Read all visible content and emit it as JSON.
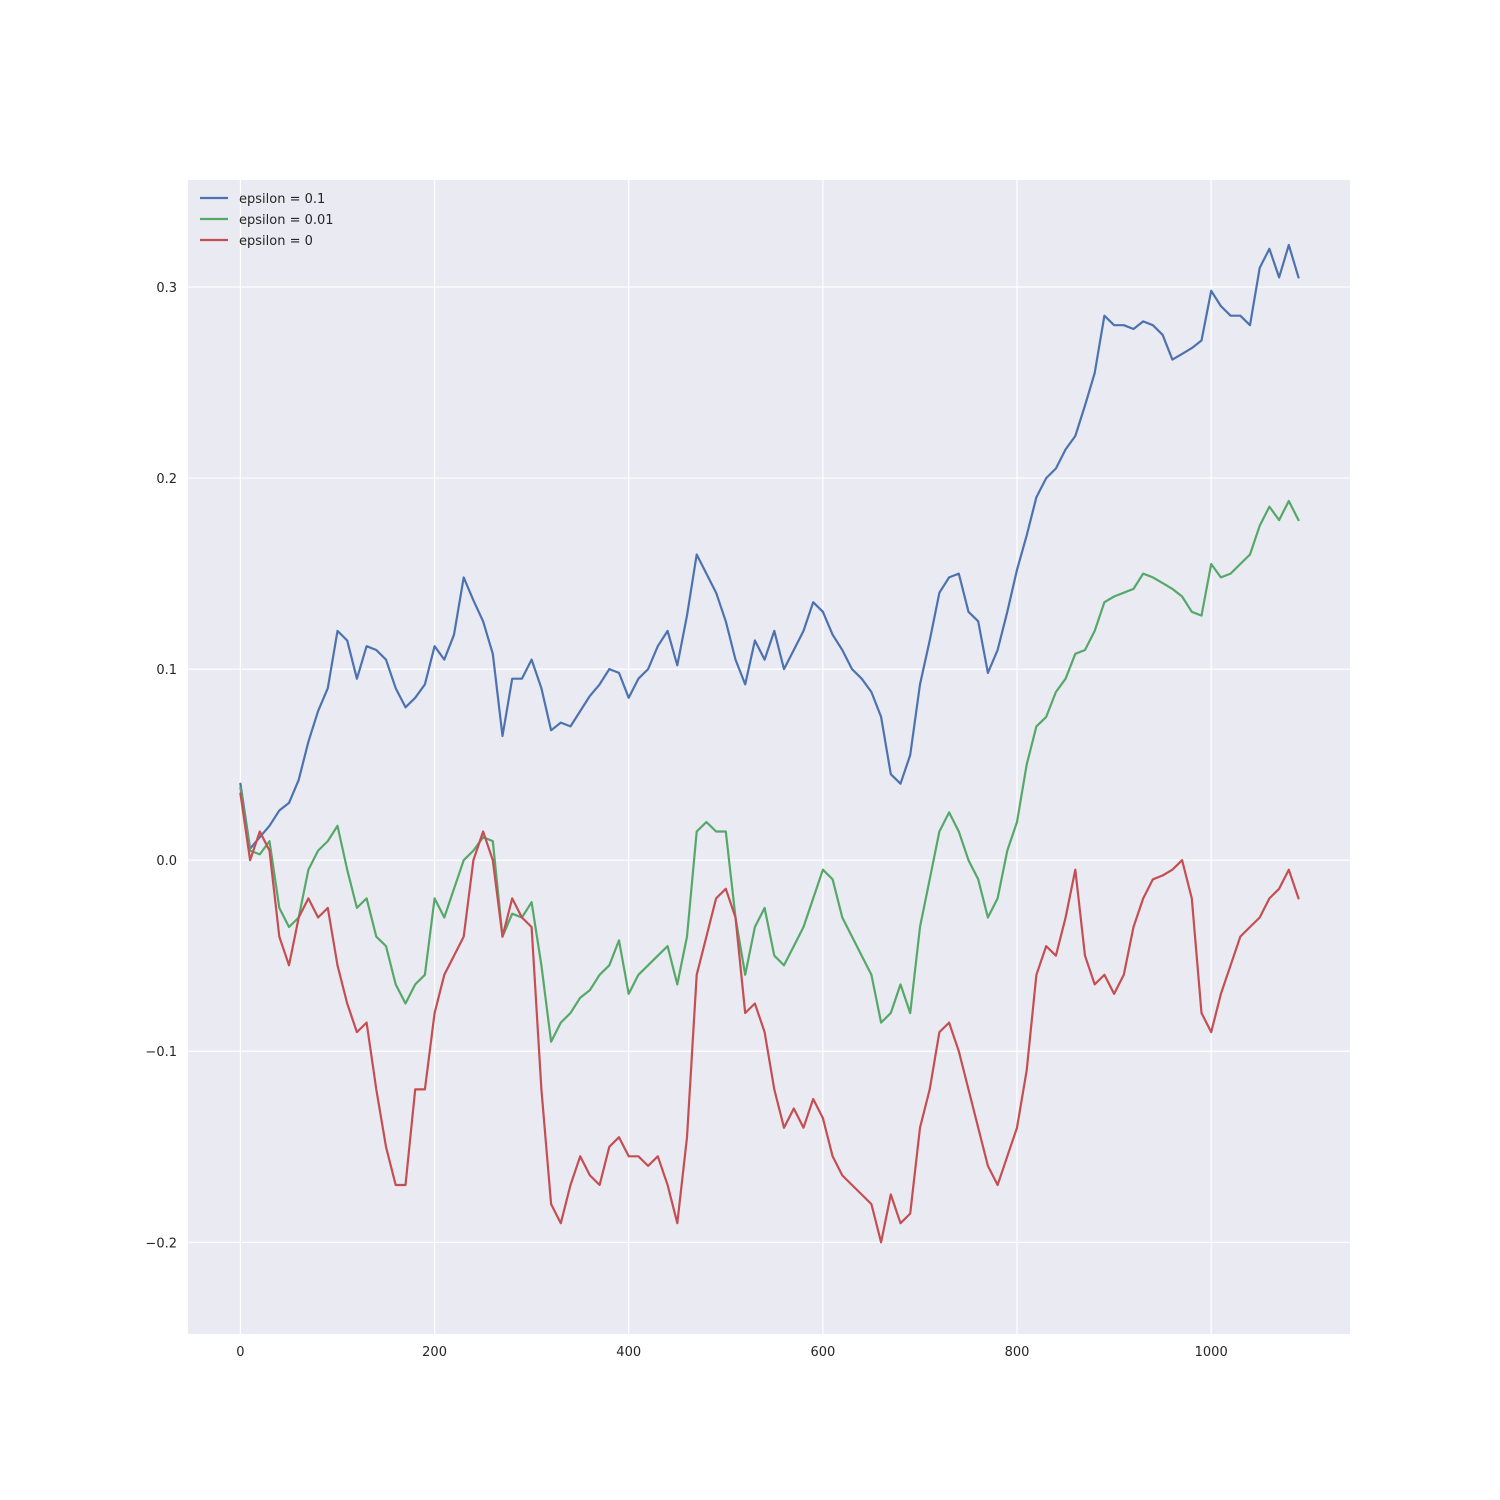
{
  "chart_data": {
    "type": "line",
    "title": "",
    "xlabel": "",
    "ylabel": "",
    "xlim": [
      -54,
      1143
    ],
    "ylim": [
      -0.248,
      0.356
    ],
    "xticks": [
      0,
      200,
      400,
      600,
      800,
      1000
    ],
    "yticks": [
      -0.2,
      -0.1,
      0.0,
      0.1,
      0.2,
      0.3
    ],
    "xtick_labels": [
      "0",
      "200",
      "400",
      "600",
      "800",
      "1000"
    ],
    "ytick_labels": [
      "−0.2",
      "−0.1",
      "0.0",
      "0.1",
      "0.2",
      "0.3"
    ],
    "grid": true,
    "background": "#eaeaf2",
    "legend": {
      "position": "top-left"
    },
    "series": [
      {
        "name": "epsilon = 0.1",
        "color": "#4c72b0",
        "x": [
          0,
          10,
          20,
          30,
          40,
          50,
          60,
          70,
          80,
          90,
          100,
          110,
          120,
          130,
          140,
          150,
          160,
          170,
          180,
          190,
          200,
          210,
          220,
          230,
          240,
          250,
          260,
          270,
          280,
          290,
          300,
          310,
          320,
          330,
          340,
          350,
          360,
          370,
          380,
          390,
          400,
          410,
          420,
          430,
          440,
          450,
          460,
          470,
          480,
          490,
          500,
          510,
          520,
          530,
          540,
          550,
          560,
          570,
          580,
          590,
          600,
          610,
          620,
          630,
          640,
          650,
          660,
          670,
          680,
          690,
          700,
          710,
          720,
          730,
          740,
          750,
          760,
          770,
          780,
          790,
          800,
          810,
          820,
          830,
          840,
          850,
          860,
          870,
          880,
          890,
          900,
          910,
          920,
          930,
          940,
          950,
          960,
          970,
          980,
          990,
          1000,
          1010,
          1020,
          1030,
          1040,
          1050,
          1060,
          1070,
          1080,
          1090
        ],
        "values": [
          0.04,
          0.006,
          0.012,
          0.018,
          0.026,
          0.03,
          0.042,
          0.062,
          0.078,
          0.09,
          0.12,
          0.115,
          0.095,
          0.112,
          0.11,
          0.105,
          0.09,
          0.08,
          0.085,
          0.092,
          0.112,
          0.105,
          0.118,
          0.148,
          0.136,
          0.125,
          0.108,
          0.065,
          0.095,
          0.095,
          0.105,
          0.09,
          0.068,
          0.072,
          0.07,
          0.078,
          0.086,
          0.092,
          0.1,
          0.098,
          0.085,
          0.095,
          0.1,
          0.112,
          0.12,
          0.102,
          0.128,
          0.16,
          0.15,
          0.14,
          0.125,
          0.105,
          0.092,
          0.115,
          0.105,
          0.12,
          0.1,
          0.11,
          0.12,
          0.135,
          0.13,
          0.118,
          0.11,
          0.1,
          0.095,
          0.088,
          0.075,
          0.045,
          0.04,
          0.055,
          0.092,
          0.115,
          0.14,
          0.148,
          0.15,
          0.13,
          0.125,
          0.098,
          0.11,
          0.13,
          0.152,
          0.17,
          0.19,
          0.2,
          0.205,
          0.215,
          0.222,
          0.238,
          0.255,
          0.285,
          0.28,
          0.28,
          0.278,
          0.282,
          0.28,
          0.275,
          0.262,
          0.265,
          0.268,
          0.272,
          0.298,
          0.29,
          0.285,
          0.285,
          0.28,
          0.31,
          0.32,
          0.305,
          0.322,
          0.305
        ]
      },
      {
        "name": "epsilon = 0.01",
        "color": "#55a868",
        "x": [
          0,
          10,
          20,
          30,
          40,
          50,
          60,
          70,
          80,
          90,
          100,
          110,
          120,
          130,
          140,
          150,
          160,
          170,
          180,
          190,
          200,
          210,
          220,
          230,
          240,
          250,
          260,
          270,
          280,
          290,
          300,
          310,
          320,
          330,
          340,
          350,
          360,
          370,
          380,
          390,
          400,
          410,
          420,
          430,
          440,
          450,
          460,
          470,
          480,
          490,
          500,
          510,
          520,
          530,
          540,
          550,
          560,
          570,
          580,
          590,
          600,
          610,
          620,
          630,
          640,
          650,
          660,
          670,
          680,
          690,
          700,
          710,
          720,
          730,
          740,
          750,
          760,
          770,
          780,
          790,
          800,
          810,
          820,
          830,
          840,
          850,
          860,
          870,
          880,
          890,
          900,
          910,
          920,
          930,
          940,
          950,
          960,
          970,
          980,
          990,
          1000,
          1010,
          1020,
          1030,
          1040,
          1050,
          1060,
          1070,
          1080,
          1090
        ],
        "values": [
          0.038,
          0.005,
          0.003,
          0.01,
          -0.025,
          -0.035,
          -0.03,
          -0.005,
          0.005,
          0.01,
          0.018,
          -0.005,
          -0.025,
          -0.02,
          -0.04,
          -0.045,
          -0.065,
          -0.075,
          -0.065,
          -0.06,
          -0.02,
          -0.03,
          -0.015,
          0.0,
          0.005,
          0.012,
          0.01,
          -0.04,
          -0.028,
          -0.03,
          -0.022,
          -0.055,
          -0.095,
          -0.085,
          -0.08,
          -0.072,
          -0.068,
          -0.06,
          -0.055,
          -0.042,
          -0.07,
          -0.06,
          -0.055,
          -0.05,
          -0.045,
          -0.065,
          -0.04,
          0.015,
          0.02,
          0.015,
          0.015,
          -0.03,
          -0.06,
          -0.035,
          -0.025,
          -0.05,
          -0.055,
          -0.045,
          -0.035,
          -0.02,
          -0.005,
          -0.01,
          -0.03,
          -0.04,
          -0.05,
          -0.06,
          -0.085,
          -0.08,
          -0.065,
          -0.08,
          -0.035,
          -0.01,
          0.015,
          0.025,
          0.015,
          0.0,
          -0.01,
          -0.03,
          -0.02,
          0.005,
          0.02,
          0.05,
          0.07,
          0.075,
          0.088,
          0.095,
          0.108,
          0.11,
          0.12,
          0.135,
          0.138,
          0.14,
          0.142,
          0.15,
          0.148,
          0.145,
          0.142,
          0.138,
          0.13,
          0.128,
          0.155,
          0.148,
          0.15,
          0.155,
          0.16,
          0.175,
          0.185,
          0.178,
          0.188,
          0.178
        ]
      },
      {
        "name": "epsilon = 0",
        "color": "#c44e52",
        "x": [
          0,
          10,
          20,
          30,
          40,
          50,
          60,
          70,
          80,
          90,
          100,
          110,
          120,
          130,
          140,
          150,
          160,
          170,
          180,
          190,
          200,
          210,
          220,
          230,
          240,
          250,
          260,
          270,
          280,
          290,
          300,
          310,
          320,
          330,
          340,
          350,
          360,
          370,
          380,
          390,
          400,
          410,
          420,
          430,
          440,
          450,
          460,
          470,
          480,
          490,
          500,
          510,
          520,
          530,
          540,
          550,
          560,
          570,
          580,
          590,
          600,
          610,
          620,
          630,
          640,
          650,
          660,
          670,
          680,
          690,
          700,
          710,
          720,
          730,
          740,
          750,
          760,
          770,
          780,
          790,
          800,
          810,
          820,
          830,
          840,
          850,
          860,
          870,
          880,
          890,
          900,
          910,
          920,
          930,
          940,
          950,
          960,
          970,
          980,
          990,
          1000,
          1010,
          1020,
          1030,
          1040,
          1050,
          1060,
          1070,
          1080,
          1090
        ],
        "values": [
          0.035,
          0.0,
          0.015,
          0.005,
          -0.04,
          -0.055,
          -0.03,
          -0.02,
          -0.03,
          -0.025,
          -0.055,
          -0.075,
          -0.09,
          -0.085,
          -0.12,
          -0.15,
          -0.17,
          -0.17,
          -0.12,
          -0.12,
          -0.08,
          -0.06,
          -0.05,
          -0.04,
          0.0,
          0.015,
          0.0,
          -0.04,
          -0.02,
          -0.03,
          -0.035,
          -0.12,
          -0.18,
          -0.19,
          -0.17,
          -0.155,
          -0.165,
          -0.17,
          -0.15,
          -0.145,
          -0.155,
          -0.155,
          -0.16,
          -0.155,
          -0.17,
          -0.19,
          -0.145,
          -0.06,
          -0.04,
          -0.02,
          -0.015,
          -0.03,
          -0.08,
          -0.075,
          -0.09,
          -0.12,
          -0.14,
          -0.13,
          -0.14,
          -0.125,
          -0.135,
          -0.155,
          -0.165,
          -0.17,
          -0.175,
          -0.18,
          -0.2,
          -0.175,
          -0.19,
          -0.185,
          -0.14,
          -0.12,
          -0.09,
          -0.085,
          -0.1,
          -0.12,
          -0.14,
          -0.16,
          -0.17,
          -0.155,
          -0.14,
          -0.11,
          -0.06,
          -0.045,
          -0.05,
          -0.03,
          -0.005,
          -0.05,
          -0.065,
          -0.06,
          -0.07,
          -0.06,
          -0.035,
          -0.02,
          -0.01,
          -0.008,
          -0.005,
          0.0,
          -0.02,
          -0.08,
          -0.09,
          -0.07,
          -0.055,
          -0.04,
          -0.035,
          -0.03,
          -0.02,
          -0.015,
          -0.005,
          -0.02
        ]
      }
    ]
  }
}
